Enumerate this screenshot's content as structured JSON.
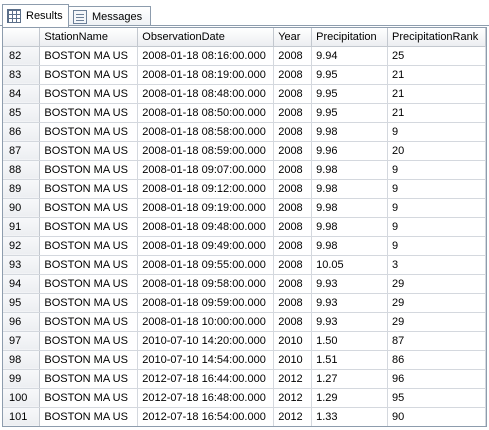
{
  "tabs": [
    {
      "label": "Results",
      "icon": "results-grid-icon",
      "active": true
    },
    {
      "label": "Messages",
      "icon": "messages-icon",
      "active": false
    }
  ],
  "grid": {
    "columns": [
      "StationName",
      "ObservationDate",
      "Year",
      "Precipitation",
      "PrecipitationRank"
    ],
    "rows": [
      {
        "num": "82",
        "cells": [
          "BOSTON MA US",
          "2008-01-18 08:16:00.000",
          "2008",
          "9.94",
          "25"
        ]
      },
      {
        "num": "83",
        "cells": [
          "BOSTON MA US",
          "2008-01-18 08:19:00.000",
          "2008",
          "9.95",
          "21"
        ]
      },
      {
        "num": "84",
        "cells": [
          "BOSTON MA US",
          "2008-01-18 08:48:00.000",
          "2008",
          "9.95",
          "21"
        ]
      },
      {
        "num": "85",
        "cells": [
          "BOSTON MA US",
          "2008-01-18 08:50:00.000",
          "2008",
          "9.95",
          "21"
        ]
      },
      {
        "num": "86",
        "cells": [
          "BOSTON MA US",
          "2008-01-18 08:58:00.000",
          "2008",
          "9.98",
          "9"
        ]
      },
      {
        "num": "87",
        "cells": [
          "BOSTON MA US",
          "2008-01-18 08:59:00.000",
          "2008",
          "9.96",
          "20"
        ]
      },
      {
        "num": "88",
        "cells": [
          "BOSTON MA US",
          "2008-01-18 09:07:00.000",
          "2008",
          "9.98",
          "9"
        ]
      },
      {
        "num": "89",
        "cells": [
          "BOSTON MA US",
          "2008-01-18 09:12:00.000",
          "2008",
          "9.98",
          "9"
        ]
      },
      {
        "num": "90",
        "cells": [
          "BOSTON MA US",
          "2008-01-18 09:19:00.000",
          "2008",
          "9.98",
          "9"
        ]
      },
      {
        "num": "91",
        "cells": [
          "BOSTON MA US",
          "2008-01-18 09:48:00.000",
          "2008",
          "9.98",
          "9"
        ]
      },
      {
        "num": "92",
        "cells": [
          "BOSTON MA US",
          "2008-01-18 09:49:00.000",
          "2008",
          "9.98",
          "9"
        ]
      },
      {
        "num": "93",
        "cells": [
          "BOSTON MA US",
          "2008-01-18 09:55:00.000",
          "2008",
          "10.05",
          "3"
        ]
      },
      {
        "num": "94",
        "cells": [
          "BOSTON MA US",
          "2008-01-18 09:58:00.000",
          "2008",
          "9.93",
          "29"
        ]
      },
      {
        "num": "95",
        "cells": [
          "BOSTON MA US",
          "2008-01-18 09:59:00.000",
          "2008",
          "9.93",
          "29"
        ]
      },
      {
        "num": "96",
        "cells": [
          "BOSTON MA US",
          "2008-01-18 10:00:00.000",
          "2008",
          "9.93",
          "29"
        ]
      },
      {
        "num": "97",
        "cells": [
          "BOSTON MA US",
          "2010-07-10 14:20:00.000",
          "2010",
          "1.50",
          "87"
        ]
      },
      {
        "num": "98",
        "cells": [
          "BOSTON MA US",
          "2010-07-10 14:54:00.000",
          "2010",
          "1.51",
          "86"
        ]
      },
      {
        "num": "99",
        "cells": [
          "BOSTON MA US",
          "2012-07-18 16:44:00.000",
          "2012",
          "1.27",
          "96"
        ]
      },
      {
        "num": "100",
        "cells": [
          "BOSTON MA US",
          "2012-07-18 16:48:00.000",
          "2012",
          "1.29",
          "95"
        ]
      },
      {
        "num": "101",
        "cells": [
          "BOSTON MA US",
          "2012-07-18 16:54:00.000",
          "2012",
          "1.33",
          "90"
        ]
      }
    ]
  }
}
